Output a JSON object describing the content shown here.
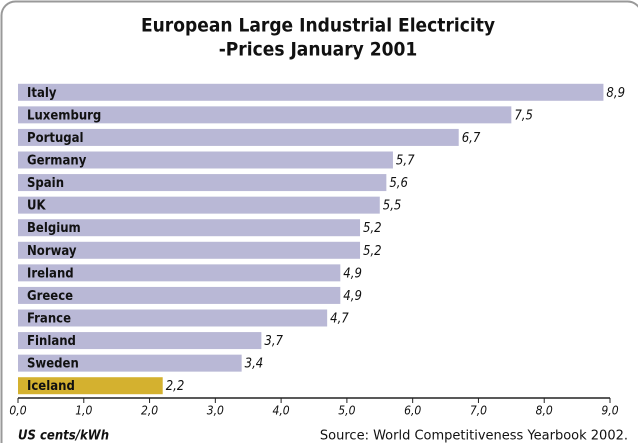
{
  "chart_data": {
    "type": "bar",
    "orientation": "horizontal",
    "title": [
      "European Large Industrial Electricity",
      "-Prices January 2001"
    ],
    "categories": [
      "Italy",
      "Luxemburg",
      "Portugal",
      "Germany",
      "Spain",
      "UK",
      "Belgium",
      "Norway",
      "Ireland",
      "Greece",
      "France",
      "Finland",
      "Sweden",
      "Iceland"
    ],
    "values": [
      8.9,
      7.5,
      6.7,
      5.7,
      5.6,
      5.5,
      5.2,
      5.2,
      4.9,
      4.9,
      4.7,
      3.7,
      3.4,
      2.2
    ],
    "value_labels": [
      "8,9",
      "7,5",
      "6,7",
      "5,7",
      "5,6",
      "5,5",
      "5,2",
      "5,2",
      "4,9",
      "4,9",
      "4,7",
      "3,7",
      "3,4",
      "2,2"
    ],
    "colors": [
      "#b9b8d6",
      "#b9b8d6",
      "#b9b8d6",
      "#b9b8d6",
      "#b9b8d6",
      "#b9b8d6",
      "#b9b8d6",
      "#b9b8d6",
      "#b9b8d6",
      "#b9b8d6",
      "#b9b8d6",
      "#b9b8d6",
      "#b9b8d6",
      "#d4b12f"
    ],
    "xlim": [
      0,
      9
    ],
    "xticks": [
      {
        "value": 0,
        "label": "0,0"
      },
      {
        "value": 1,
        "label": "1,0"
      },
      {
        "value": 2,
        "label": "2,0"
      },
      {
        "value": 3,
        "label": "3,0"
      },
      {
        "value": 4,
        "label": "4,0"
      },
      {
        "value": 5,
        "label": "5,0"
      },
      {
        "value": 6,
        "label": "6,0"
      },
      {
        "value": 7,
        "label": "7,0"
      },
      {
        "value": 8,
        "label": "8,0"
      },
      {
        "value": 9,
        "label": "9,0"
      }
    ],
    "xlabel": "US cents/kWh",
    "source": "Source:  World Competitiveness Yearbook 2002."
  }
}
